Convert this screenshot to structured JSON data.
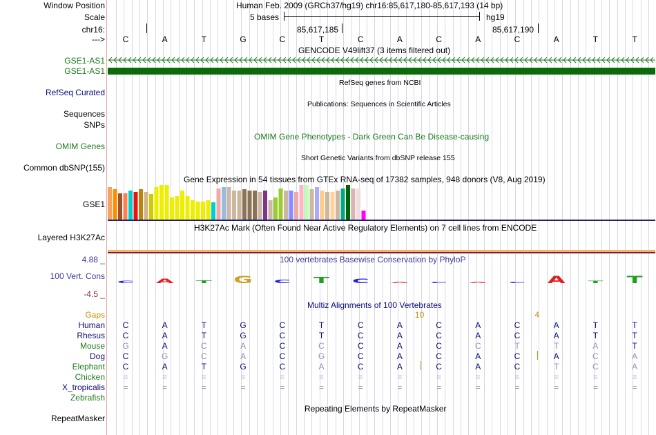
{
  "ruler": {
    "window_label": "Window Position",
    "window_value": "Human Feb. 2009 (GRCh37/hg19)   chr16:85,617,180-85,617,193 (14 bp)",
    "scale_label": "Scale",
    "scale_value": "5 bases",
    "assembly": "hg19",
    "chrom_label": "chr16:",
    "pos1": "85,617,185",
    "pos2": "85,617,190",
    "arrow_label": "--->",
    "bases": [
      "C",
      "A",
      "T",
      "G",
      "C",
      "T",
      "C",
      "A",
      "C",
      "A",
      "C",
      "A",
      "T",
      "T"
    ]
  },
  "gencode": {
    "title": "GENCODE V49lift37 (3 items filtered out)",
    "tracks": [
      "GSE1-AS1",
      "GSE1-AS1"
    ],
    "color": "#1a7a1a"
  },
  "refseq": {
    "label": "RefSeq Curated",
    "title": "RefSeq genes from NCBI"
  },
  "publications": {
    "label1": "Sequences",
    "label2": "SNPs",
    "title": "Publications: Sequences in Scientific Articles"
  },
  "omim": {
    "label": "OMIM Genes",
    "title": "OMIM Gene Phenotypes - Dark Green Can Be Disease-causing"
  },
  "dbsnp": {
    "label": "Common dbSNP(155)",
    "title": "Short Genetic Variants from dbSNP release 155"
  },
  "gtex": {
    "title": "Gene Expression in 54 tissues from GTEx RNA-seq of 17382 samples, 948 donors (V8, Aug 2019)",
    "label": "GSE1",
    "bars": [
      {
        "h": 0.93,
        "c": "#f4a460"
      },
      {
        "h": 0.88,
        "c": "#ff8c00"
      },
      {
        "h": 0.76,
        "c": "#a0522d"
      },
      {
        "h": 0.76,
        "c": "#ff7f50"
      },
      {
        "h": 0.83,
        "c": "#00cdcd"
      },
      {
        "h": 0.8,
        "c": "#ee1111"
      },
      {
        "h": 0.88,
        "c": "#b8860b"
      },
      {
        "h": 0.8,
        "c": "#d2b48c"
      },
      {
        "h": 0.73,
        "c": "#cccc00"
      },
      {
        "h": 0.93,
        "c": "#eeee00"
      },
      {
        "h": 1.0,
        "c": "#eeee00"
      },
      {
        "h": 1.0,
        "c": "#eeee00"
      },
      {
        "h": 0.63,
        "c": "#eeee00"
      },
      {
        "h": 0.68,
        "c": "#eeee00"
      },
      {
        "h": 0.83,
        "c": "#eeee00"
      },
      {
        "h": 0.68,
        "c": "#eeee00"
      },
      {
        "h": 0.56,
        "c": "#eeee00"
      },
      {
        "h": 0.51,
        "c": "#eeee00"
      },
      {
        "h": 0.51,
        "c": "#eeee00"
      },
      {
        "h": 0.56,
        "c": "#eeee00"
      },
      {
        "h": 0.49,
        "c": "#00cdcd"
      },
      {
        "h": 0.9,
        "c": "#eeaaaa"
      },
      {
        "h": 0.93,
        "c": "#99bbdd"
      },
      {
        "h": 0.93,
        "c": "#cdb7a8"
      },
      {
        "h": 0.83,
        "c": "#cdb79e"
      },
      {
        "h": 0.83,
        "c": "#cdb79e"
      },
      {
        "h": 0.88,
        "c": "#8b7355"
      },
      {
        "h": 0.83,
        "c": "#8b7355"
      },
      {
        "h": 0.83,
        "c": "#8b7355"
      },
      {
        "h": 0.8,
        "c": "#cdb79e"
      },
      {
        "h": 0.83,
        "c": "#7a378b"
      },
      {
        "h": 0.56,
        "c": "#cdb7a8"
      },
      {
        "h": 0.63,
        "c": "#9acd32"
      },
      {
        "h": 0.9,
        "c": "#9acd32"
      },
      {
        "h": 0.83,
        "c": "#cdb79e"
      },
      {
        "h": 0.83,
        "c": "#8a8aff"
      },
      {
        "h": 0.8,
        "c": "#eeaaaa"
      },
      {
        "h": 1.0,
        "c": "#ffb6c1"
      },
      {
        "h": 1.0,
        "c": "#bbffbb"
      },
      {
        "h": 0.88,
        "c": "#cdb79e"
      },
      {
        "h": 0.93,
        "c": "#aaaaff"
      },
      {
        "h": 0.83,
        "c": "#ffcc88"
      },
      {
        "h": 0.8,
        "c": "#cdb79e"
      },
      {
        "h": 0.8,
        "c": "#ffd39b"
      },
      {
        "h": 0.83,
        "c": "#cdb79e"
      },
      {
        "h": 0.9,
        "c": "#00aa88"
      },
      {
        "h": 1.0,
        "c": "#006400"
      },
      {
        "h": 0.9,
        "c": "#dab5b5"
      },
      {
        "h": 0.9,
        "c": "#eedddd"
      },
      {
        "h": 0.25,
        "c": "#ff00ff"
      }
    ]
  },
  "h3k27ac": {
    "label": "Layered H3K27Ac",
    "title": "H3K27Ac Mark (Often Found Near Active Regulatory Elements) on 7 cell lines from ENCODE"
  },
  "cons": {
    "label": "100 Vert. Cons",
    "ymax": "4.88 _",
    "ymin": "-4.5 _",
    "title": "100 vertebrates Basewise Conservation by PhyloP",
    "color": "#3c3c99",
    "values": [
      0.3,
      0.6,
      0.4,
      1.0,
      0.5,
      0.9,
      0.6,
      0.1,
      0.1,
      0.2,
      0.1,
      1.0,
      0.3,
      1.0
    ]
  },
  "multiz": {
    "title": "Multiz Alignments of 100 Vertebrates",
    "gaps_label": "Gaps",
    "gap_counts": [
      {
        "col": 8,
        "text": "10"
      },
      {
        "col": 11,
        "text": "4"
      }
    ],
    "species": [
      {
        "name": "Human",
        "color": "#0c0c78",
        "seq": [
          "C",
          "A",
          "T",
          "G",
          "C",
          "T",
          "C",
          "A",
          "C",
          "A",
          "C",
          "A",
          "T",
          "T"
        ]
      },
      {
        "name": "Rhesus",
        "color": "#0c0c78",
        "seq": [
          "C",
          "A",
          "T",
          "G",
          "C",
          "T",
          "C",
          "A",
          "C",
          "A",
          "C",
          "A",
          "T",
          "T"
        ]
      },
      {
        "name": "Mouse",
        "color": "#1a7a1a",
        "seq": [
          "G",
          "A",
          "C",
          "A",
          "C",
          "C",
          "C",
          "A",
          "C",
          "C",
          "T",
          "T",
          "A",
          "T"
        ]
      },
      {
        "name": "Dog",
        "color": "#0c0c78",
        "seq": [
          "C",
          "G",
          "C",
          "A",
          "C",
          "G",
          "C",
          "A",
          "C",
          "A",
          "C",
          "A",
          "C",
          "A"
        ]
      },
      {
        "name": "Elephant",
        "color": "#1a7a1a",
        "seq": [
          "C",
          "A",
          "T",
          "G",
          "C",
          "A",
          "C",
          "A",
          "C",
          "A",
          "C",
          "T",
          "C",
          "A"
        ]
      },
      {
        "name": "Chicken",
        "color": "#1a7a1a",
        "seq": [
          "=",
          "=",
          "=",
          "=",
          "=",
          "=",
          "=",
          "=",
          "=",
          "=",
          "=",
          "=",
          "=",
          "="
        ]
      },
      {
        "name": "X_tropicalis",
        "color": "#0c0c78",
        "seq": [
          "=",
          "=",
          "=",
          "=",
          "=",
          "=",
          "=",
          "=",
          "=",
          "=",
          "=",
          "=",
          "=",
          "="
        ]
      },
      {
        "name": "Zebrafish",
        "color": "#1a7a1a",
        "seq": [
          "",
          "",
          "",
          "",
          "",
          "",
          "",
          "",
          "",
          "",
          "",
          "",
          "",
          ""
        ]
      }
    ]
  },
  "repeatmasker": {
    "label": "RepeatMasker",
    "title": "Repeating Elements by RepeatMasker"
  }
}
